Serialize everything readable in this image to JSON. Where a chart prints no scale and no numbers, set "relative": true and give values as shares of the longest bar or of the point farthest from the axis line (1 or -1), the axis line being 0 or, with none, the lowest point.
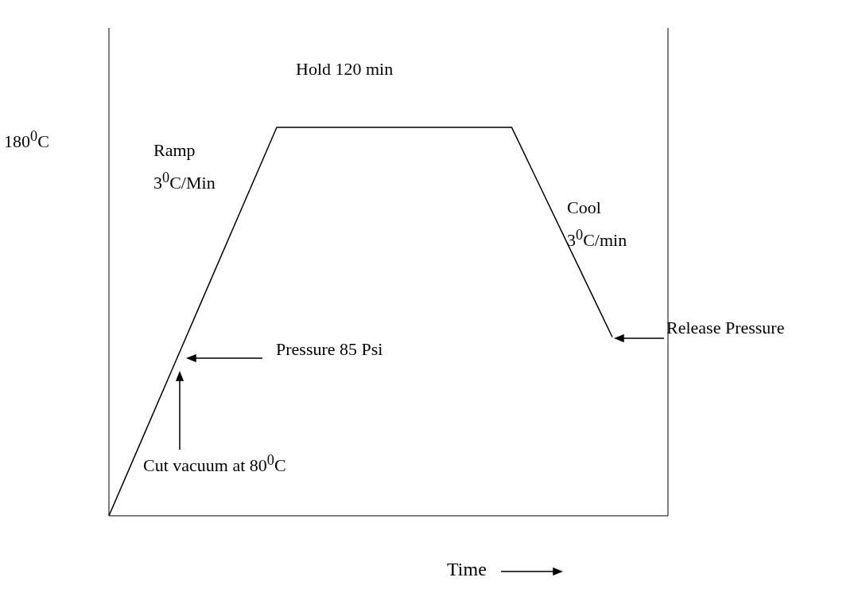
{
  "chart_data": {
    "type": "line",
    "relative": true,
    "xlabel": "Time",
    "categories": [
      null,
      null,
      null,
      null,
      null,
      null,
      null,
      null,
      null,
      null,
      null,
      null,
      null,
      null,
      null,
      null
    ],
    "series": [
      {
        "color": "#000000",
        "values": [
          0,
          0.2,
          0.4,
          0.6,
          0.8,
          1,
          1,
          1,
          1,
          1,
          1,
          1,
          1,
          0.82,
          0.64,
          0.46
        ]
      }
    ],
    "marker": "none",
    "line_style": "solid",
    "annotations": [
      "Hold 120 min",
      "180$^{0}$C",
      "Ramp\n3$^{0}$C/Min",
      "Cool\n3$^{0}$C/min",
      "Release Pressure",
      "Pressure 85 Psi",
      "Cut vacuum at 80$^{0}$C"
    ]
  }
}
